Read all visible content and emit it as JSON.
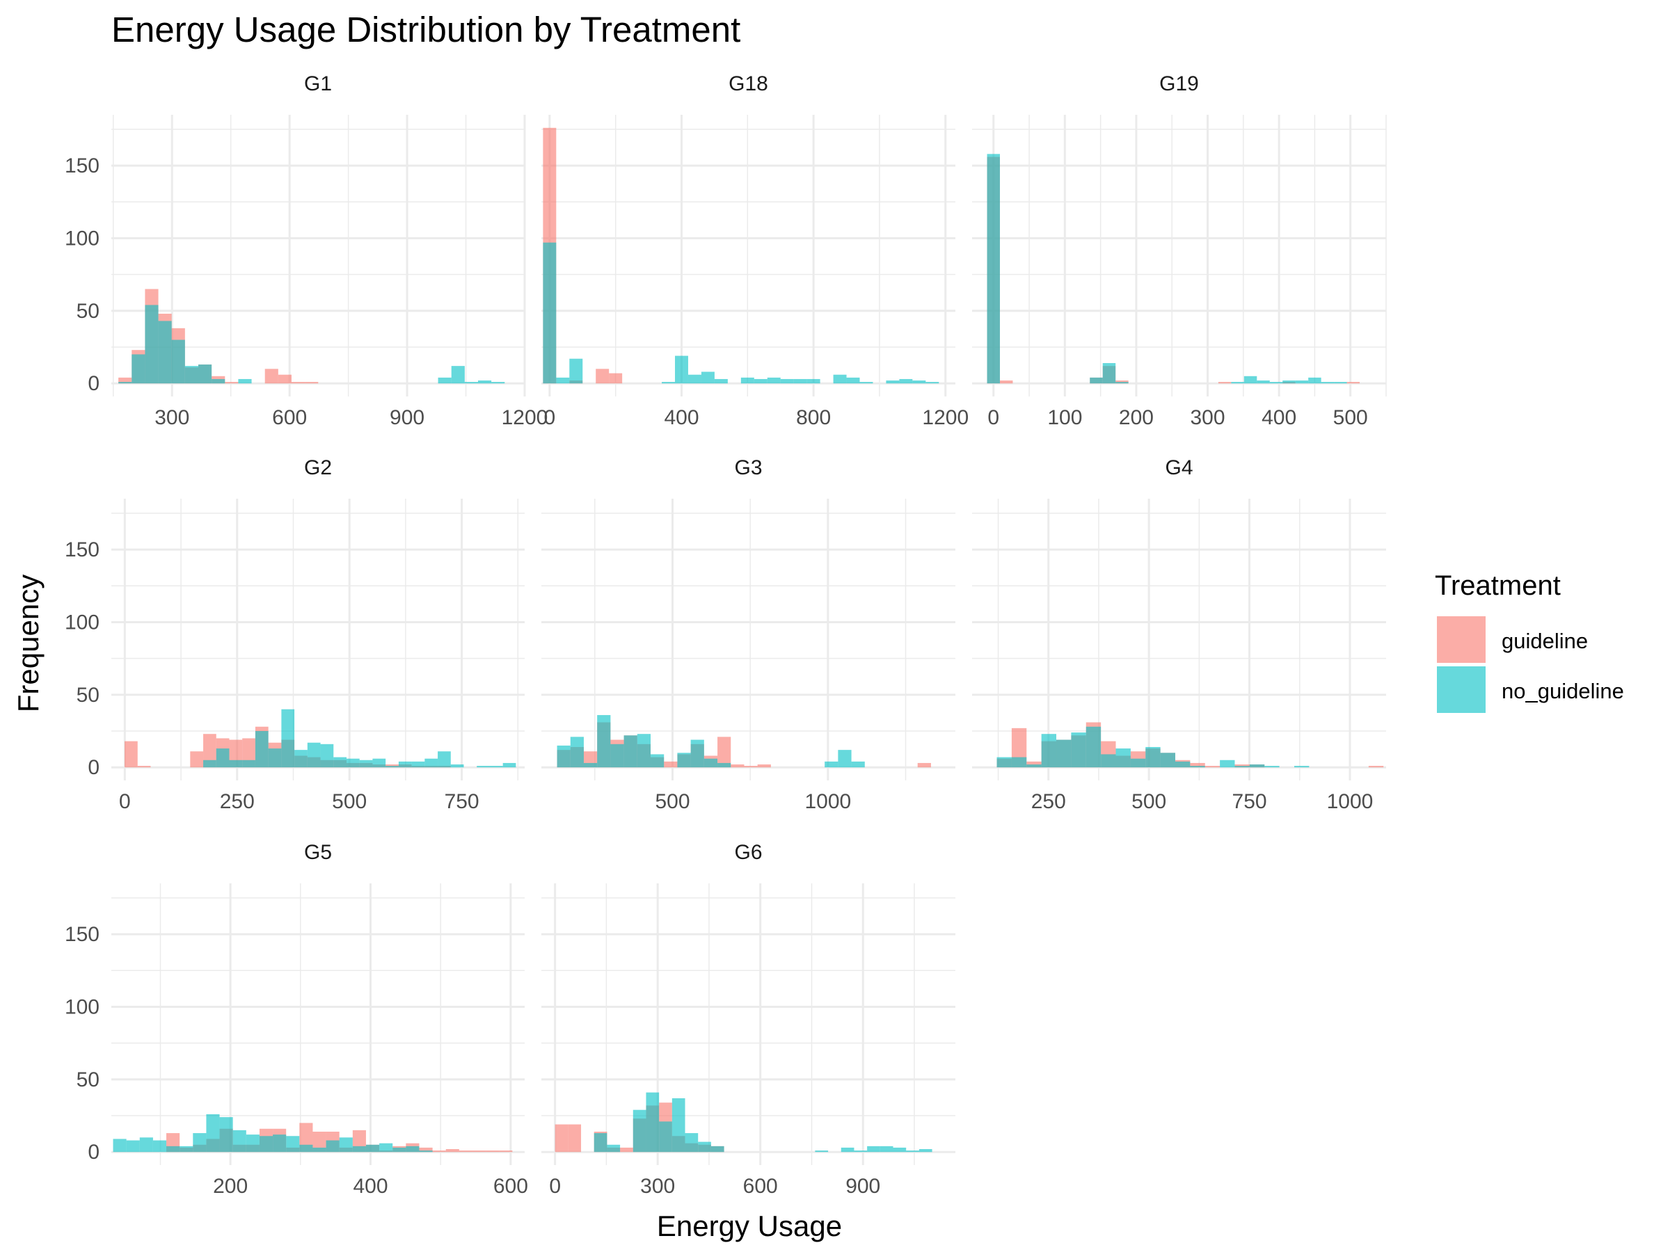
{
  "colors": {
    "guideline": "#F8766D",
    "no_guideline": "#00BFC4",
    "grid": "#EBEBEB"
  },
  "chart_data": {
    "type": "bar",
    "title": "Energy Usage Distribution by Treatment",
    "xlabel": "Energy Usage",
    "ylabel": "Frequency",
    "y_ticks": [
      0,
      50,
      100,
      150
    ],
    "ylim": [
      -9,
      185
    ],
    "legend": {
      "title": "Treatment",
      "entries": [
        "guideline",
        "no_guideline"
      ],
      "position": "right"
    },
    "bar_opacity": 0.6,
    "panels": [
      {
        "name": "G1",
        "xlim": [
          145,
          1200
        ],
        "binwidth": 34,
        "x_ticks": [
          300,
          600,
          900,
          1200
        ],
        "series": [
          {
            "name": "guideline",
            "x": [
              180,
              214,
              248,
              282,
              316,
              350,
              384,
              418,
              452,
              554,
              588,
              622,
              656
            ],
            "values": [
              4,
              23,
              65,
              48,
              38,
              11,
              13,
              5,
              1,
              10,
              6,
              1,
              1
            ]
          },
          {
            "name": "no_guideline",
            "x": [
              180,
              214,
              248,
              282,
              316,
              350,
              384,
              418,
              486,
              996,
              1030,
              1064,
              1098,
              1132
            ],
            "values": [
              1,
              20,
              54,
              43,
              30,
              12,
              13,
              3,
              3,
              4,
              12,
              1,
              2,
              1
            ]
          }
        ]
      },
      {
        "name": "G18",
        "xlim": [
          -25,
          1230
        ],
        "binwidth": 40,
        "x_ticks": [
          0,
          400,
          800,
          1200
        ],
        "series": [
          {
            "name": "guideline",
            "x": [
              0,
              80,
              160,
              200
            ],
            "values": [
              176,
              2,
              10,
              7
            ]
          },
          {
            "name": "no_guideline",
            "x": [
              0,
              40,
              80,
              360,
              400,
              440,
              480,
              520,
              600,
              640,
              680,
              720,
              760,
              800,
              880,
              920,
              960,
              1040,
              1080,
              1120,
              1160
            ],
            "values": [
              97,
              4,
              17,
              1,
              19,
              6,
              8,
              3,
              4,
              3,
              4,
              3,
              3,
              3,
              6,
              4,
              1,
              2,
              3,
              2,
              1
            ]
          }
        ]
      },
      {
        "name": "G19",
        "xlim": [
          -30,
          550
        ],
        "binwidth": 18,
        "x_ticks": [
          0,
          100,
          200,
          300,
          400,
          500
        ],
        "series": [
          {
            "name": "guideline",
            "x": [
              0,
              18,
              144,
              162,
              180,
              324,
              414,
              504
            ],
            "values": [
              156,
              2,
              4,
              12,
              2,
              1,
              1,
              1
            ]
          },
          {
            "name": "no_guideline",
            "x": [
              0,
              144,
              162,
              180,
              342,
              360,
              378,
              396,
              414,
              432,
              450,
              468,
              486
            ],
            "values": [
              158,
              4,
              14,
              1,
              1,
              5,
              2,
              1,
              2,
              2,
              4,
              1,
              1
            ]
          }
        ]
      },
      {
        "name": "G2",
        "xlim": [
          -30,
          890
        ],
        "binwidth": 29,
        "x_ticks": [
          0,
          250,
          500,
          750
        ],
        "series": [
          {
            "name": "guideline",
            "x": [
              14,
              43,
              160,
              189,
              218,
              247,
              276,
              305,
              334,
              363,
              392,
              421,
              450,
              479,
              508,
              537,
              566,
              595,
              624,
              653,
              682,
              711
            ],
            "values": [
              18,
              1,
              11,
              23,
              20,
              19,
              20,
              28,
              17,
              19,
              8,
              7,
              5,
              5,
              3,
              3,
              2,
              2,
              2,
              1,
              1,
              1
            ]
          },
          {
            "name": "no_guideline",
            "x": [
              189,
              218,
              247,
              276,
              305,
              334,
              363,
              392,
              421,
              450,
              479,
              508,
              537,
              566,
              595,
              624,
              653,
              682,
              711,
              740,
              769,
              798,
              827,
              856
            ],
            "values": [
              5,
              13,
              5,
              5,
              25,
              13,
              40,
              12,
              17,
              16,
              7,
              6,
              5,
              6,
              1,
              4,
              4,
              6,
              11,
              2,
              0,
              1,
              1,
              3
            ]
          }
        ]
      },
      {
        "name": "G3",
        "xlim": [
          78,
          1410
        ],
        "binwidth": 43,
        "x_ticks": [
          500,
          1000
        ],
        "series": [
          {
            "name": "guideline",
            "x": [
              150,
              193,
              236,
              279,
              322,
              365,
              408,
              451,
              494,
              537,
              580,
              623,
              666,
              709,
              752,
              795,
              1310
            ],
            "values": [
              12,
              14,
              11,
              31,
              19,
              22,
              16,
              7,
              4,
              9,
              16,
              8,
              21,
              2,
              1,
              2,
              3
            ]
          },
          {
            "name": "no_guideline",
            "x": [
              150,
              193,
              236,
              279,
              322,
              365,
              408,
              451,
              494,
              537,
              580,
              623,
              666,
              709,
              1011,
              1054,
              1097
            ],
            "values": [
              15,
              21,
              3,
              36,
              16,
              22,
              23,
              9,
              0,
              10,
              19,
              6,
              3,
              0,
              4,
              12,
              4
            ]
          }
        ]
      },
      {
        "name": "G4",
        "xlim": [
          60,
          1090
        ],
        "binwidth": 37,
        "x_ticks": [
          250,
          500,
          750,
          1000
        ],
        "series": [
          {
            "name": "guideline",
            "x": [
              140,
              177,
              214,
              251,
              288,
              325,
              362,
              399,
              436,
              473,
              510,
              547,
              584,
              621,
              658,
              732,
              769,
              1065
            ],
            "values": [
              6,
              27,
              4,
              18,
              19,
              22,
              31,
              18,
              8,
              11,
              13,
              10,
              5,
              3,
              1,
              2,
              2,
              1
            ]
          },
          {
            "name": "no_guideline",
            "x": [
              140,
              177,
              214,
              251,
              288,
              325,
              362,
              399,
              436,
              473,
              510,
              547,
              584,
              621,
              658,
              695,
              732,
              769,
              806,
              880
            ],
            "values": [
              7,
              7,
              2,
              23,
              19,
              24,
              28,
              9,
              13,
              6,
              14,
              10,
              4,
              1,
              0,
              5,
              1,
              2,
              1,
              1
            ]
          }
        ]
      },
      {
        "name": "G5",
        "xlim": [
          30,
          620
        ],
        "binwidth": 19,
        "x_ticks": [
          200,
          400,
          600
        ],
        "series": [
          {
            "name": "guideline",
            "x": [
              118,
              137,
              156,
              175,
              194,
              213,
              232,
              251,
              270,
              289,
              308,
              327,
              346,
              365,
              384,
              403,
              422,
              441,
              460,
              479,
              498,
              517,
              536,
              555,
              574,
              593
            ],
            "values": [
              13,
              3,
              5,
              9,
              16,
              5,
              5,
              16,
              16,
              3,
              20,
              14,
              14,
              3,
              15,
              5,
              1,
              4,
              6,
              3,
              1,
              2,
              1,
              1,
              1,
              1
            ]
          },
          {
            "name": "no_guideline",
            "x": [
              42,
              61,
              80,
              99,
              118,
              137,
              156,
              175,
              194,
              213,
              232,
              251,
              270,
              289,
              308,
              327,
              346,
              365,
              384,
              403,
              422,
              441,
              460,
              479
            ],
            "values": [
              9,
              8,
              10,
              8,
              4,
              4,
              13,
              26,
              24,
              15,
              12,
              11,
              12,
              11,
              5,
              3,
              8,
              10,
              4,
              5,
              6,
              3,
              4,
              1
            ]
          }
        ]
      },
      {
        "name": "G6",
        "xlim": [
          -40,
          1170
        ],
        "binwidth": 38,
        "x_ticks": [
          0,
          300,
          600,
          900
        ],
        "series": [
          {
            "name": "guideline",
            "x": [
              19,
              57,
              133,
              171,
              209,
              247,
              285,
              323,
              361,
              399,
              437,
              475
            ],
            "values": [
              19,
              19,
              14,
              3,
              3,
              23,
              32,
              34,
              11,
              6,
              5,
              4
            ]
          },
          {
            "name": "no_guideline",
            "x": [
              133,
              171,
              209,
              247,
              285,
              323,
              361,
              399,
              437,
              475,
              779,
              855,
              893,
              931,
              969,
              1007,
              1045,
              1083
            ],
            "values": [
              13,
              5,
              0,
              29,
              41,
              21,
              37,
              13,
              7,
              4,
              1,
              3,
              1,
              4,
              4,
              3,
              1,
              2
            ]
          }
        ]
      }
    ]
  }
}
